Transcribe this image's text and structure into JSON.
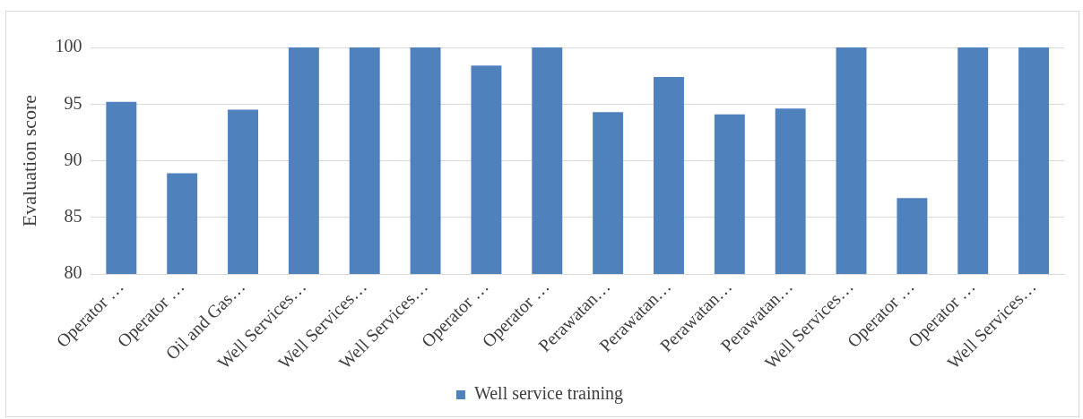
{
  "chart_data": {
    "type": "bar",
    "ylabel": "Evaluation score",
    "categories": [
      "Operator …",
      "Operator …",
      "Oil and Gas…",
      "Well Services…",
      "Well Services…",
      "Well Services…",
      "Operator …",
      "Operator …",
      "Perawatan…",
      "Perawatan…",
      "Perawatan…",
      "Perawatan…",
      "Well Services…",
      "Operator …",
      "Operator …",
      "Well Services…"
    ],
    "series": [
      {
        "name": "Well service training",
        "color": "#4f81bd",
        "values": [
          95.2,
          88.9,
          94.5,
          100,
          100,
          100,
          98.4,
          100,
          94.3,
          97.4,
          94.1,
          94.6,
          100,
          86.7,
          100,
          100
        ]
      }
    ],
    "ylim": [
      80,
      100
    ],
    "yticks": [
      80,
      85,
      90,
      95,
      100
    ],
    "grid": "y",
    "legend": "bottom"
  }
}
